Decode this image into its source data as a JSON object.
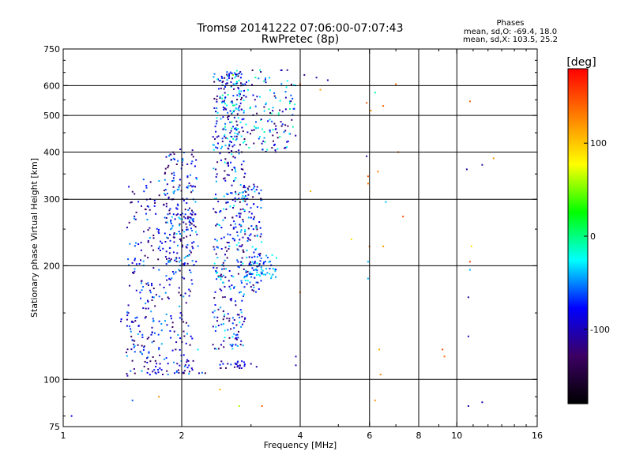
{
  "chart_data": {
    "type": "scatter",
    "title": "Tromsø 20141222 07:06:00-07:07:43",
    "subtitle": "RwPretec (8p)",
    "xlabel": "Frequency [MHz]",
    "ylabel": "Stationary phase Virtual Height [km]",
    "x_scale": "log",
    "y_scale": "log",
    "xlim": [
      1,
      16
    ],
    "ylim": [
      75,
      750
    ],
    "x_ticks": [
      1,
      2,
      4,
      6,
      8,
      10,
      16
    ],
    "y_ticks": [
      75,
      100,
      200,
      300,
      400,
      500,
      600,
      750
    ],
    "x_gridlines": [
      2,
      4,
      6,
      8,
      10
    ],
    "y_gridlines": [
      100,
      200,
      300,
      400,
      500,
      600
    ],
    "grid": true,
    "phase_header": "Phases",
    "phase_stats": [
      "mean, sd,O: -69.4, 18.0",
      "mean, sd,X: 103.5, 25.2"
    ],
    "colorbar": {
      "label": "[deg]",
      "range": [
        -180,
        180
      ],
      "ticks": [
        100,
        0,
        -100
      ],
      "stops": [
        "#000000",
        "#3c0064",
        "#0000ff",
        "#00ffff",
        "#00ff00",
        "#ffff00",
        "#ff8000",
        "#ff0000"
      ]
    },
    "clusters": [
      {
        "fmin": 1.45,
        "fmax": 2.15,
        "hmin": 102,
        "hmax": 340,
        "n": 320,
        "pmin": -140,
        "pmax": -40
      },
      {
        "fmin": 1.8,
        "fmax": 2.2,
        "hmin": 200,
        "hmax": 410,
        "n": 150,
        "pmin": -140,
        "pmax": -30
      },
      {
        "fmin": 2.4,
        "fmax": 2.9,
        "hmin": 120,
        "hmax": 660,
        "n": 420,
        "pmin": -140,
        "pmax": -20
      },
      {
        "fmin": 2.8,
        "fmax": 3.2,
        "hmin": 170,
        "hmax": 330,
        "n": 120,
        "pmin": -140,
        "pmax": -20
      },
      {
        "fmin": 2.5,
        "fmax": 3.9,
        "hmin": 400,
        "hmax": 660,
        "n": 200,
        "pmin": -140,
        "pmax": 0
      },
      {
        "fmin": 2.9,
        "fmax": 3.5,
        "hmin": 185,
        "hmax": 215,
        "n": 60,
        "pmin": -80,
        "pmax": -20
      },
      {
        "fmin": 1.6,
        "fmax": 2.3,
        "hmin": 103,
        "hmax": 112,
        "n": 30,
        "pmin": -140,
        "pmax": -40
      },
      {
        "fmin": 2.5,
        "fmax": 2.9,
        "hmin": 107,
        "hmax": 112,
        "n": 25,
        "pmin": -140,
        "pmax": -60
      },
      {
        "fmin": 1.4,
        "fmax": 1.8,
        "hmin": 115,
        "hmax": 160,
        "n": 30,
        "pmin": -130,
        "pmax": -40
      }
    ],
    "points": [
      {
        "x": 1.05,
        "y": 80,
        "phase": -80
      },
      {
        "x": 1.5,
        "y": 88,
        "phase": -60
      },
      {
        "x": 1.75,
        "y": 90,
        "phase": 120
      },
      {
        "x": 2.5,
        "y": 94,
        "phase": 110
      },
      {
        "x": 3.2,
        "y": 85,
        "phase": 140
      },
      {
        "x": 2.8,
        "y": 85,
        "phase": 60
      },
      {
        "x": 4.25,
        "y": 315,
        "phase": 110
      },
      {
        "x": 4.0,
        "y": 170,
        "phase": 120
      },
      {
        "x": 4.0,
        "y": 605,
        "phase": 150
      },
      {
        "x": 4.1,
        "y": 640,
        "phase": -120
      },
      {
        "x": 4.4,
        "y": 630,
        "phase": -110
      },
      {
        "x": 4.5,
        "y": 585,
        "phase": 120
      },
      {
        "x": 4.7,
        "y": 620,
        "phase": -100
      },
      {
        "x": 5.4,
        "y": 235,
        "phase": 90
      },
      {
        "x": 5.9,
        "y": 390,
        "phase": -110
      },
      {
        "x": 5.9,
        "y": 540,
        "phase": 140
      },
      {
        "x": 5.95,
        "y": 345,
        "phase": 150
      },
      {
        "x": 5.95,
        "y": 330,
        "phase": 130
      },
      {
        "x": 6.0,
        "y": 225,
        "phase": 140
      },
      {
        "x": 5.95,
        "y": 205,
        "phase": -40
      },
      {
        "x": 5.95,
        "y": 185,
        "phase": -40
      },
      {
        "x": 6.05,
        "y": 515,
        "phase": 120
      },
      {
        "x": 6.2,
        "y": 575,
        "phase": -10
      },
      {
        "x": 6.3,
        "y": 355,
        "phase": 130
      },
      {
        "x": 6.35,
        "y": 120,
        "phase": 110
      },
      {
        "x": 6.4,
        "y": 103,
        "phase": 130
      },
      {
        "x": 6.2,
        "y": 88,
        "phase": 120
      },
      {
        "x": 6.5,
        "y": 530,
        "phase": 140
      },
      {
        "x": 6.5,
        "y": 225,
        "phase": 120
      },
      {
        "x": 6.6,
        "y": 295,
        "phase": -40
      },
      {
        "x": 7.0,
        "y": 605,
        "phase": 140
      },
      {
        "x": 7.1,
        "y": 400,
        "phase": 140
      },
      {
        "x": 7.3,
        "y": 270,
        "phase": 150
      },
      {
        "x": 9.2,
        "y": 120,
        "phase": 150
      },
      {
        "x": 9.3,
        "y": 115,
        "phase": 140
      },
      {
        "x": 10.8,
        "y": 545,
        "phase": 140
      },
      {
        "x": 10.9,
        "y": 225,
        "phase": 90
      },
      {
        "x": 10.8,
        "y": 205,
        "phase": 150
      },
      {
        "x": 10.8,
        "y": 195,
        "phase": -40
      },
      {
        "x": 10.7,
        "y": 165,
        "phase": -110
      },
      {
        "x": 10.7,
        "y": 130,
        "phase": -100
      },
      {
        "x": 10.6,
        "y": 360,
        "phase": -110
      },
      {
        "x": 11.6,
        "y": 370,
        "phase": -110
      },
      {
        "x": 12.4,
        "y": 385,
        "phase": 120
      },
      {
        "x": 10.7,
        "y": 85,
        "phase": -110
      },
      {
        "x": 11.6,
        "y": 87,
        "phase": -110
      },
      {
        "x": 3.0,
        "y": 110,
        "phase": -110
      },
      {
        "x": 3.1,
        "y": 108,
        "phase": -110
      },
      {
        "x": 3.9,
        "y": 115,
        "phase": -100
      },
      {
        "x": 3.9,
        "y": 109,
        "phase": -100
      },
      {
        "x": 2.2,
        "y": 120,
        "phase": -30
      },
      {
        "x": 2.7,
        "y": 640,
        "phase": 60
      }
    ]
  }
}
